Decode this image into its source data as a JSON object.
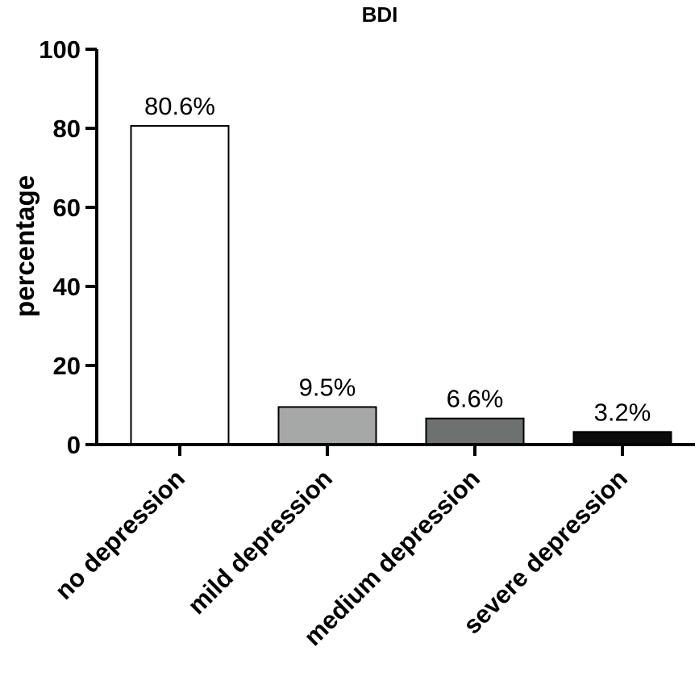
{
  "chart_data": {
    "type": "bar",
    "title": "BDI",
    "xlabel": "",
    "ylabel": "percentage",
    "ylim": [
      0,
      100
    ],
    "yticks": [
      0,
      20,
      40,
      60,
      80,
      100
    ],
    "categories": [
      "no depression",
      "mild depression",
      "medium depression",
      "severe depression"
    ],
    "values": [
      80.6,
      9.5,
      6.6,
      3.2
    ],
    "data_labels": [
      "80.6%",
      "9.5%",
      "6.6%",
      "3.2%"
    ],
    "bar_colors": [
      "#ffffff",
      "#a6a8a8",
      "#6d7170",
      "#0c0c0c"
    ],
    "grid": false,
    "legend": "none"
  }
}
